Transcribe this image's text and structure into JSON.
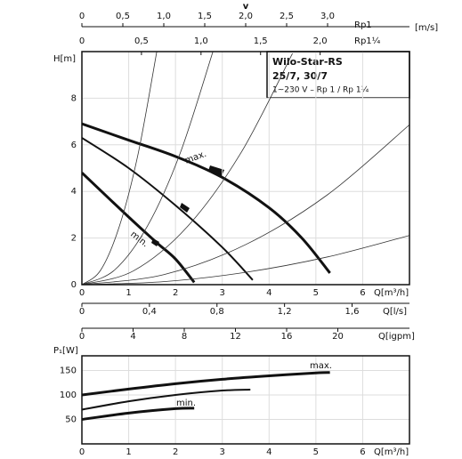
{
  "chart_data": [
    {
      "type": "line",
      "title": "Wilo-Star-RS",
      "subtitle": "25/7, 30/7",
      "annotation": "1~230 V – Rp 1 / Rp 1¼",
      "ylabel": "H[m]",
      "xlabel": "Q[m³/h]",
      "xlim": [
        0,
        7
      ],
      "ylim": [
        0,
        10
      ],
      "xticks": [
        0,
        1,
        2,
        3,
        4,
        5,
        6
      ],
      "yticks": [
        0,
        2,
        4,
        6,
        8
      ],
      "series": [
        {
          "name": "max.",
          "color": "#111",
          "width": 3,
          "x": [
            0,
            1,
            2,
            3,
            4,
            4.7,
            5.3
          ],
          "values": [
            6.9,
            6.2,
            5.5,
            4.6,
            3.3,
            2.0,
            0.5
          ]
        },
        {
          "color": "#111",
          "width": 2,
          "x": [
            0,
            1,
            2,
            3,
            3.65
          ],
          "values": [
            6.3,
            5.0,
            3.4,
            1.6,
            0.2
          ]
        },
        {
          "name": "min.",
          "color": "#111",
          "width": 3,
          "x": [
            0,
            1,
            1.6,
            2,
            2.4
          ],
          "values": [
            4.8,
            2.9,
            1.8,
            1.1,
            0.1
          ]
        },
        {
          "color": "#333",
          "width": 0.8,
          "x": [
            0,
            0.4,
            0.8,
            1.2,
            1.6
          ],
          "values": [
            0,
            0.62,
            2.5,
            5.6,
            10
          ]
        },
        {
          "color": "#333",
          "width": 0.8,
          "x": [
            0,
            0.7,
            1.4,
            2.1,
            2.8
          ],
          "values": [
            0,
            0.63,
            2.51,
            5.64,
            10
          ]
        },
        {
          "color": "#333",
          "width": 0.8,
          "x": [
            0,
            1.1,
            2.25,
            3.4,
            4.5
          ],
          "values": [
            0,
            0.59,
            2.48,
            5.66,
            9.92
          ]
        },
        {
          "color": "#333",
          "width": 0.8,
          "x": [
            0,
            1.75,
            3.5,
            5.25,
            7
          ],
          "values": [
            0,
            0.43,
            1.72,
            3.86,
            6.86
          ]
        },
        {
          "color": "#333",
          "width": 0.8,
          "x": [
            0,
            1.75,
            3.5,
            5.25,
            7
          ],
          "values": [
            0,
            0.13,
            0.53,
            1.19,
            2.11
          ]
        }
      ],
      "top_label": "v",
      "top_unit": "[m/s]",
      "x_axes": [
        {
          "label": "Rp1",
          "xlim": [
            0,
            4
          ],
          "xticks": [
            0,
            {
              "value": 0.5,
              "label": "0,5"
            },
            {
              "value": 1,
              "label": "1,0"
            },
            {
              "value": 1.5,
              "label": "1,5"
            },
            {
              "value": 2,
              "label": "2,0"
            },
            {
              "value": 2.5,
              "label": "2,5"
            },
            {
              "value": 3,
              "label": "3,0"
            }
          ]
        },
        {
          "label": "Rp1¼",
          "xlim": [
            0,
            2.75
          ],
          "xticks": [
            0,
            {
              "value": 0.5,
              "label": "0,5"
            },
            {
              "value": 1,
              "label": "1,0"
            },
            {
              "value": 1.5,
              "label": "1,5"
            },
            {
              "value": 2,
              "label": "2,0"
            }
          ]
        },
        {
          "label": "Q[l/s]",
          "xlim": [
            0,
            1.94
          ],
          "xticks": [
            0,
            {
              "value": 0.4,
              "label": "0,4"
            },
            {
              "value": 0.8,
              "label": "0,8"
            },
            {
              "value": 1.2,
              "label": "1,2"
            },
            {
              "value": 1.6,
              "label": "1,6"
            }
          ]
        },
        {
          "label": "Q[igpm]",
          "xlim": [
            0,
            25.6
          ],
          "xticks": [
            0,
            4,
            8,
            12,
            16,
            20
          ]
        }
      ]
    },
    {
      "type": "line",
      "ylabel": "P₁[W]",
      "xlabel": "Q[m³/h]",
      "xlim": [
        0,
        7
      ],
      "ylim": [
        0,
        180
      ],
      "xticks": [
        0,
        1,
        2,
        3,
        4,
        5,
        6
      ],
      "yticks": [
        50,
        100,
        150
      ],
      "series": [
        {
          "name": "max.",
          "color": "#111",
          "width": 3,
          "x": [
            0,
            1,
            2,
            3,
            4,
            5,
            5.3
          ],
          "values": [
            100,
            112,
            123,
            132,
            139,
            145,
            146
          ]
        },
        {
          "color": "#111",
          "width": 2,
          "x": [
            0,
            1,
            2,
            3,
            3.6
          ],
          "values": [
            70,
            87,
            100,
            109,
            111
          ]
        },
        {
          "name": "min.",
          "color": "#111",
          "width": 3,
          "x": [
            0,
            1,
            2,
            2.4
          ],
          "values": [
            50,
            63,
            72,
            73
          ]
        }
      ]
    }
  ]
}
